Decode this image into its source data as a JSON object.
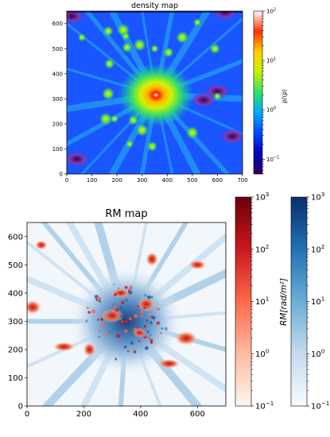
{
  "chart_data": [
    {
      "type": "heatmap",
      "title": "density map",
      "xlim": [
        0,
        700
      ],
      "ylim": [
        0,
        650
      ],
      "x_ticks": [
        0,
        100,
        200,
        300,
        400,
        500,
        600,
        700
      ],
      "y_ticks": [
        0,
        100,
        200,
        300,
        400,
        500,
        600
      ],
      "colorbar": {
        "label": "ρ/⟨ρ⟩",
        "scale": "log",
        "range": [
          0.05,
          100
        ],
        "ticks": [
          {
            "value": 100,
            "base": "10",
            "exp": "2"
          },
          {
            "value": 10,
            "base": "10",
            "exp": "1"
          },
          {
            "value": 1,
            "base": "10",
            "exp": "0"
          },
          {
            "value": 0.1,
            "base": "10",
            "exp": "−1"
          }
        ],
        "colormap": "jet",
        "colors": [
          "#30005a",
          "#0000b8",
          "#0048ff",
          "#00a8ff",
          "#30e070",
          "#c8f000",
          "#ffd000",
          "#ff3000",
          "#ffffff"
        ]
      },
      "features": {
        "central_peak": {
          "x": 355,
          "y": 315,
          "value": 80
        },
        "knots": [
          {
            "x": 60,
            "y": 545
          },
          {
            "x": 165,
            "y": 570
          },
          {
            "x": 225,
            "y": 575
          },
          {
            "x": 235,
            "y": 550
          },
          {
            "x": 240,
            "y": 505
          },
          {
            "x": 290,
            "y": 515
          },
          {
            "x": 350,
            "y": 500
          },
          {
            "x": 405,
            "y": 485
          },
          {
            "x": 460,
            "y": 545
          },
          {
            "x": 520,
            "y": 605
          },
          {
            "x": 590,
            "y": 500
          },
          {
            "x": 155,
            "y": 220
          },
          {
            "x": 190,
            "y": 220
          },
          {
            "x": 265,
            "y": 215
          },
          {
            "x": 300,
            "y": 175
          },
          {
            "x": 250,
            "y": 120
          },
          {
            "x": 340,
            "y": 110
          },
          {
            "x": 500,
            "y": 165
          },
          {
            "x": 600,
            "y": 310
          },
          {
            "x": 170,
            "y": 440
          },
          {
            "x": 165,
            "y": 320
          }
        ],
        "voids": [
          {
            "x": 20,
            "y": 630
          },
          {
            "x": 545,
            "y": 295
          },
          {
            "x": 600,
            "y": 330
          },
          {
            "x": 630,
            "y": 645
          },
          {
            "x": 40,
            "y": 60
          },
          {
            "x": 660,
            "y": 150
          }
        ]
      }
    },
    {
      "type": "heatmap",
      "title": "RM map",
      "xlim": [
        0,
        700
      ],
      "ylim": [
        0,
        650
      ],
      "x_ticks": [
        0,
        200,
        400,
        600
      ],
      "y_ticks": [
        0,
        100,
        200,
        300,
        400,
        500,
        600
      ],
      "colorbars": [
        {
          "label": "",
          "scale": "log",
          "range": [
            0.1,
            1000
          ],
          "colormap": "Reds",
          "colors": [
            "#fff5f0",
            "#fcbba1",
            "#fb6a4a",
            "#cb181d",
            "#67000d"
          ],
          "ticks": [
            {
              "value": 1000,
              "base": "10",
              "exp": "3"
            },
            {
              "value": 100,
              "base": "10",
              "exp": "2"
            },
            {
              "value": 10,
              "base": "10",
              "exp": "1"
            },
            {
              "value": 1,
              "base": "10",
              "exp": "0"
            },
            {
              "value": 0.1,
              "base": "10",
              "exp": "−1"
            }
          ]
        },
        {
          "label": "RM[rad/m²]",
          "scale": "log",
          "range": [
            0.1,
            1000
          ],
          "colormap": "Blues",
          "colors": [
            "#f7fbff",
            "#c6dbef",
            "#6baed6",
            "#2171b5",
            "#08306b"
          ],
          "ticks": [
            {
              "value": 1000,
              "base": "10",
              "exp": "3"
            },
            {
              "value": 100,
              "base": "10",
              "exp": "2"
            },
            {
              "value": 10,
              "base": "10",
              "exp": "1"
            },
            {
              "value": 1,
              "base": "10",
              "exp": "0"
            },
            {
              "value": 0.1,
              "base": "10",
              "exp": "−1"
            }
          ]
        }
      ],
      "features": {
        "central_cluster": {
          "x": 350,
          "y": 300
        },
        "red_patches": [
          {
            "x": 50,
            "y": 570
          },
          {
            "x": 20,
            "y": 350
          },
          {
            "x": 130,
            "y": 210
          },
          {
            "x": 220,
            "y": 200
          },
          {
            "x": 330,
            "y": 400
          },
          {
            "x": 300,
            "y": 320
          },
          {
            "x": 395,
            "y": 260
          },
          {
            "x": 420,
            "y": 360
          },
          {
            "x": 500,
            "y": 150
          },
          {
            "x": 440,
            "y": 520
          },
          {
            "x": 600,
            "y": 500
          },
          {
            "x": 560,
            "y": 240
          }
        ]
      }
    }
  ]
}
